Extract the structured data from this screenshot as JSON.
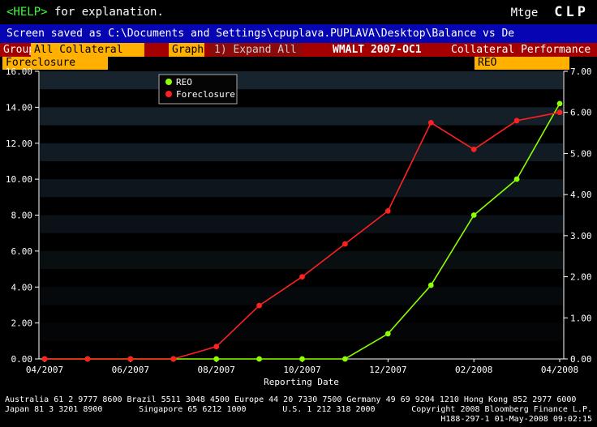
{
  "header": {
    "help_link": "<HELP>",
    "help_rest": " for explanation.",
    "right_label": "Mtge",
    "brand": "CLP"
  },
  "title_bar": {
    "text": "Screen saved as C:\\Documents and Settings\\cpuplava.PUPLAVA\\Desktop\\Balance vs De"
  },
  "toolbar": {
    "group_label": "Group",
    "group_value": "All Collateral",
    "graph_button": "Graph",
    "expand_all": "1) Expand All",
    "deal_name": "WMALT 2007-OC1",
    "screen_name": "Collateral Performance"
  },
  "selectors": {
    "left_series": "Foreclosure",
    "right_series": "REO"
  },
  "chart_data": {
    "type": "line",
    "title": "",
    "xlabel": "Reporting Date",
    "band_color": "#1b2a36",
    "legend_position": "top-left-inner",
    "x": [
      "04/2007",
      "05/2007",
      "06/2007",
      "07/2007",
      "08/2007",
      "09/2007",
      "10/2007",
      "11/2007",
      "12/2007",
      "01/2008",
      "02/2008",
      "03/2008",
      "04/2008"
    ],
    "x_tick_labels": [
      "04/2007",
      "06/2007",
      "08/2007",
      "10/2007",
      "12/2007",
      "02/2008",
      "04/2008"
    ],
    "left_axis": {
      "min": 0,
      "max": 16,
      "tick_labels": [
        "0.00",
        "2.00",
        "4.00",
        "6.00",
        "8.00",
        "10.00",
        "12.00",
        "14.00",
        "16.00"
      ]
    },
    "right_axis": {
      "min": 0,
      "max": 7,
      "tick_labels": [
        "0.00",
        "1.00",
        "2.00",
        "3.00",
        "4.00",
        "5.00",
        "6.00",
        "7.00"
      ]
    },
    "series": [
      {
        "name": "REO",
        "color": "#8cff00",
        "axis": "left",
        "values": [
          0,
          0,
          0,
          0,
          0,
          0,
          0,
          0,
          1.4,
          4.1,
          8.0,
          10.0,
          14.2
        ]
      },
      {
        "name": "Foreclosure",
        "color": "#ff2020",
        "axis": "right",
        "values": [
          0,
          0,
          0,
          0,
          0.3,
          1.3,
          2.0,
          2.8,
          3.6,
          5.75,
          5.1,
          5.8,
          6.0
        ]
      }
    ],
    "legend": [
      "REO",
      "Foreclosure"
    ]
  },
  "footer": {
    "line1": "Australia 61 2 9777 8600 Brazil 5511 3048 4500 Europe 44 20 7330 7500 Germany 49 69 9204 1210 Hong Kong 852 2977 6000",
    "line2_japan": "Japan 81 3 3201 8900",
    "line2_singapore": "Singapore 65 6212 1000",
    "line2_us": "U.S. 1 212 318 2000",
    "line2_copyright": "Copyright 2008 Bloomberg Finance L.P.",
    "line3": "H188-297-1 01-May-2008 09:02:15"
  }
}
